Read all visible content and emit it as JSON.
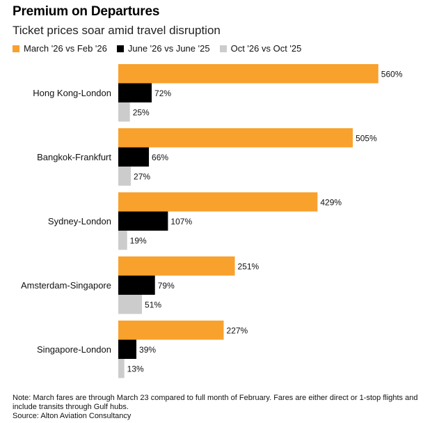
{
  "header": {
    "title": "Premium on Departures",
    "subtitle": "Ticket prices soar amid travel disruption"
  },
  "colors": {
    "series1": "#f9a12d",
    "series2": "#000000",
    "series3": "#cccccc"
  },
  "chart_data": {
    "type": "bar",
    "orientation": "horizontal",
    "categories": [
      "Hong Kong-London",
      "Bangkok-Frankfurt",
      "Sydney-London",
      "Amsterdam-Singapore",
      "Singapore-London"
    ],
    "series": [
      {
        "name": "March '26 vs Feb '26",
        "values": [
          560,
          505,
          429,
          251,
          227
        ],
        "labels": [
          "560%",
          "505%",
          "429%",
          "251%",
          "227%"
        ]
      },
      {
        "name": "June '26 vs June '25",
        "values": [
          72,
          66,
          107,
          79,
          39
        ],
        "labels": [
          "72%",
          "66%",
          "107%",
          "79%",
          "39%"
        ]
      },
      {
        "name": "Oct '26 vs Oct '25",
        "values": [
          25,
          27,
          19,
          51,
          13
        ],
        "labels": [
          "25%",
          "27%",
          "19%",
          "51%",
          "13%"
        ]
      }
    ],
    "unit": "%",
    "xlim": [
      0,
      600
    ],
    "grid": false,
    "legend_position": "top-left"
  },
  "footer": {
    "note": "Note: March fares are through March 23 compared to full month of February. Fares are either direct or 1-stop flights and include transits through Gulf hubs.",
    "source": "Source: Alton Aviation Consultancy"
  }
}
